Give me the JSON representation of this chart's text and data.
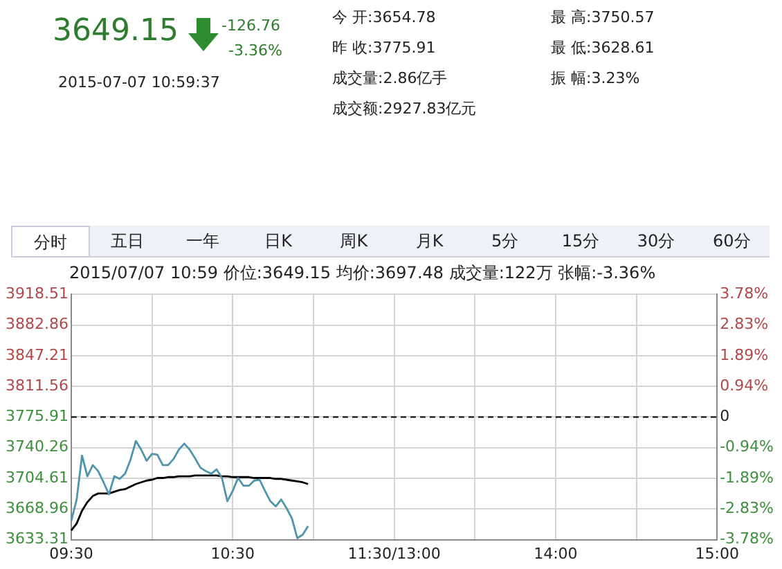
{
  "chart_data": {
    "type": "line",
    "subtitle": "2015/07/07 10:59  价位:3649.15  均价:3697.48  成交量:122万  张幅:-3.36%",
    "annotations": [
      "3649.15",
      "-126.76",
      "-3.36%",
      "2015-07-07 10:59:37",
      "今  开:3654.78",
      "昨  收:3775.91",
      "成交量:2.86亿手",
      "成交额:2927.83亿元",
      "最  高:3750.57",
      "最  低:3628.61",
      "振  幅:3.23%",
      "分时",
      "五日",
      "一年",
      "日K",
      "周K",
      "月K",
      "5分",
      "15分",
      "30分",
      "60分"
    ],
    "categories": [
      "09:30",
      null,
      null,
      null,
      null,
      null,
      null,
      null,
      null,
      null,
      null,
      null,
      null,
      null,
      null,
      null,
      null,
      null,
      null,
      null,
      null,
      null,
      null,
      null,
      null,
      null,
      null,
      null,
      null,
      null,
      "10:30",
      null,
      null,
      null,
      null,
      null,
      null,
      null,
      null,
      null,
      null,
      null,
      null,
      null,
      null,
      null,
      null,
      null,
      null,
      null,
      null,
      null,
      null,
      null,
      null,
      null,
      null,
      null,
      null,
      null,
      "11:30/13:00",
      null,
      null,
      null,
      null,
      null,
      null,
      null,
      null,
      null,
      null,
      null,
      null,
      null,
      null,
      null,
      null,
      null,
      null,
      null,
      null,
      null,
      null,
      null,
      null,
      null,
      null,
      null,
      null,
      null,
      "14:00",
      null,
      null,
      null,
      null,
      null,
      null,
      null,
      null,
      null,
      null,
      null,
      null,
      null,
      null,
      null,
      null,
      null,
      null,
      null,
      null,
      null,
      null,
      null,
      null,
      null,
      null,
      null,
      null,
      null,
      "15:00"
    ],
    "series": [
      {
        "color": "#4f94ad",
        "values": [
          3655,
          3680,
          3731,
          3707,
          3720,
          3713,
          3700,
          3686,
          3707,
          3704,
          3710,
          3726,
          3748,
          3738,
          3725,
          3733,
          3732,
          3720,
          3720,
          3727,
          3738,
          3745,
          3738,
          3728,
          3717,
          3713,
          3710,
          3715,
          3705,
          3678,
          3690,
          3705,
          3696,
          3696,
          3702,
          3703,
          3690,
          3678,
          3672,
          3680,
          3670,
          3658,
          3635,
          3639,
          3649,
          null,
          null,
          null,
          null,
          null,
          null,
          null,
          null,
          null,
          null,
          null,
          null,
          null,
          null,
          null,
          null,
          null,
          null,
          null,
          null,
          null,
          null,
          null,
          null,
          null,
          null,
          null,
          null,
          null,
          null,
          null,
          null,
          null,
          null,
          null,
          null,
          null,
          null,
          null,
          null,
          null,
          null,
          null,
          null,
          null,
          null,
          null,
          null,
          null,
          null,
          null,
          null,
          null,
          null,
          null,
          null,
          null,
          null,
          null,
          null,
          null,
          null,
          null,
          null,
          null,
          null,
          null,
          null,
          null,
          null,
          null,
          null,
          null,
          null,
          null,
          null
        ]
      },
      {
        "color": "#000000",
        "values": [
          3644,
          3652,
          3667,
          3677,
          3684,
          3687,
          3687,
          3687,
          3689,
          3691,
          3692,
          3695,
          3698,
          3700,
          3702,
          3703,
          3705,
          3705,
          3706,
          3706,
          3707,
          3707,
          3707,
          3708,
          3708,
          3708,
          3708,
          3708,
          3707,
          3707,
          3706,
          3706,
          3706,
          3706,
          3705,
          3705,
          3705,
          3705,
          3704,
          3704,
          3703,
          3702,
          3701,
          3700,
          3698,
          null,
          null,
          null,
          null,
          null,
          null,
          null,
          null,
          null,
          null,
          null,
          null,
          null,
          null,
          null,
          null,
          null,
          null,
          null,
          null,
          null,
          null,
          null,
          null,
          null,
          null,
          null,
          null,
          null,
          null,
          null,
          null,
          null,
          null,
          null,
          null,
          null,
          null,
          null,
          null,
          null,
          null,
          null,
          null,
          null,
          null,
          null,
          null,
          null,
          null,
          null,
          null,
          null,
          null,
          null,
          null,
          null,
          null,
          null,
          null,
          null,
          null,
          null,
          null,
          null,
          null,
          null,
          null,
          null,
          null,
          null,
          null,
          null,
          null,
          null,
          null
        ]
      }
    ],
    "ylim": [
      3633.31,
      3918.51
    ],
    "yticks": [
      3633.31,
      3668.96,
      3704.61,
      3740.26,
      3775.91,
      3811.56,
      3847.21,
      3882.86,
      3918.51
    ],
    "y2lim": [
      -3.78,
      3.78
    ],
    "y2ticks": [
      {
        "value": -3.78,
        "label": "-3.78%"
      },
      {
        "value": -2.83,
        "label": "-2.83%"
      },
      {
        "value": -1.89,
        "label": "-1.89%"
      },
      {
        "value": -0.94,
        "label": "-0.94%"
      },
      0,
      {
        "value": 0.94,
        "label": "0.94%"
      },
      {
        "value": 1.89,
        "label": "1.89%"
      },
      {
        "value": 2.83,
        "label": "2.83%"
      },
      {
        "value": 3.78,
        "label": "3.78%"
      }
    ],
    "ref_lines": [
      {
        "axis": "y",
        "value": 3775.91,
        "color": "#000000",
        "line_style": "dashed"
      }
    ],
    "grid": true,
    "legend": false,
    "marker": "none",
    "line_style": "solid"
  }
}
